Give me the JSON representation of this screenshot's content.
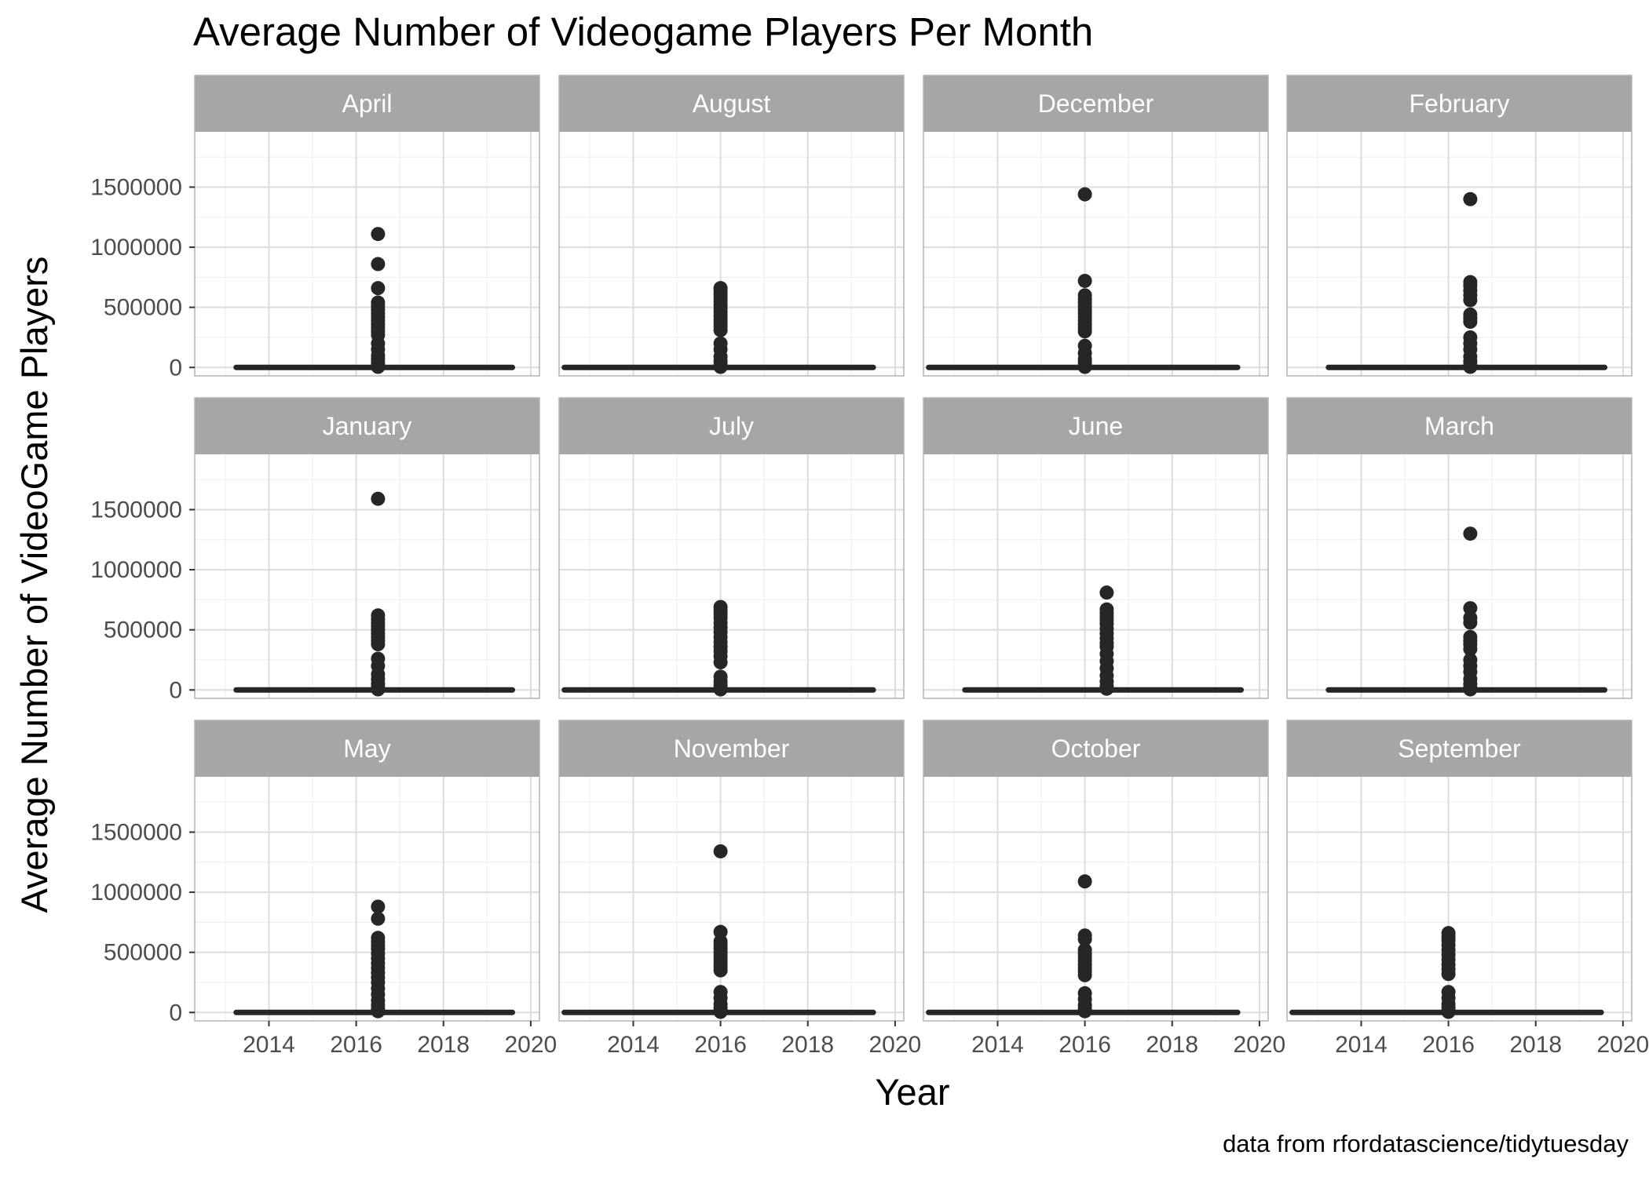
{
  "chart_data": {
    "type": "scatter",
    "title": "Average Number of Videogame Players Per Month",
    "xlabel": "Year",
    "ylabel": "Average Number of VideoGame Players",
    "caption": "data from rfordatascience/tidytuesday",
    "xlim": [
      2012.3,
      2020.2
    ],
    "ylim": [
      -70000,
      1960000
    ],
    "x_ticks": [
      2014,
      2016,
      2018,
      2020
    ],
    "y_ticks": [
      0,
      500000,
      1000000,
      1500000
    ],
    "x_tick_labels": [
      "2014",
      "2016",
      "2018",
      "2020"
    ],
    "y_tick_labels": [
      "0",
      "500000",
      "1000000",
      "1500000"
    ],
    "grid": true,
    "theme": "light",
    "colors": {
      "point": "#262626",
      "strip": "#a6a6a6",
      "strip_text": "#ffffff",
      "grid_major": "#dcdcdc",
      "grid_minor": "#efefef",
      "border": "#b3b3b3"
    },
    "facets": [
      {
        "label": "April",
        "x_range": [
          2013.25,
          2019.58
        ],
        "x": 2016.5,
        "y": [
          1110000,
          860000,
          660000,
          540000,
          510000,
          480000,
          450000,
          420000,
          390000,
          360000,
          330000,
          300000,
          270000,
          200000,
          150000,
          100000,
          70000,
          40000,
          20000,
          5000
        ]
      },
      {
        "label": "August",
        "x_range": [
          2012.42,
          2019.5
        ],
        "x": 2016,
        "y": [
          660000,
          640000,
          610000,
          580000,
          550000,
          520000,
          490000,
          460000,
          430000,
          400000,
          370000,
          340000,
          310000,
          200000,
          150000,
          90000,
          50000,
          20000,
          5000
        ]
      },
      {
        "label": "December",
        "x_range": [
          2012.42,
          2019.5
        ],
        "x": 2016,
        "y": [
          1440000,
          720000,
          600000,
          570000,
          540000,
          510000,
          480000,
          450000,
          420000,
          390000,
          360000,
          330000,
          300000,
          180000,
          120000,
          70000,
          40000,
          15000,
          5000
        ]
      },
      {
        "label": "February",
        "x_range": [
          2013.25,
          2019.58
        ],
        "x": 2016.5,
        "y": [
          1400000,
          710000,
          680000,
          640000,
          600000,
          560000,
          440000,
          410000,
          380000,
          250000,
          200000,
          150000,
          90000,
          50000,
          20000,
          5000
        ]
      },
      {
        "label": "January",
        "x_range": [
          2013.25,
          2019.58
        ],
        "x": 2016.5,
        "y": [
          1590000,
          620000,
          590000,
          560000,
          530000,
          500000,
          470000,
          440000,
          410000,
          380000,
          260000,
          200000,
          130000,
          90000,
          50000,
          20000,
          5000
        ]
      },
      {
        "label": "July",
        "x_range": [
          2012.42,
          2019.5
        ],
        "x": 2016,
        "y": [
          690000,
          660000,
          630000,
          600000,
          560000,
          520000,
          480000,
          440000,
          400000,
          360000,
          320000,
          280000,
          230000,
          110000,
          70000,
          40000,
          15000,
          5000
        ]
      },
      {
        "label": "June",
        "x_range": [
          2013.25,
          2019.58
        ],
        "x": 2016.5,
        "y": [
          810000,
          670000,
          640000,
          610000,
          580000,
          550000,
          510000,
          470000,
          430000,
          390000,
          360000,
          300000,
          240000,
          180000,
          120000,
          70000,
          30000,
          10000
        ]
      },
      {
        "label": "March",
        "x_range": [
          2013.25,
          2019.58
        ],
        "x": 2016.5,
        "y": [
          1300000,
          680000,
          600000,
          560000,
          440000,
          410000,
          380000,
          340000,
          250000,
          200000,
          150000,
          90000,
          50000,
          20000,
          5000
        ]
      },
      {
        "label": "May",
        "x_range": [
          2013.25,
          2019.58
        ],
        "x": 2016.5,
        "y": [
          880000,
          780000,
          620000,
          590000,
          560000,
          530000,
          490000,
          450000,
          410000,
          370000,
          330000,
          290000,
          250000,
          200000,
          150000,
          100000,
          60000,
          30000,
          10000
        ]
      },
      {
        "label": "November",
        "x_range": [
          2012.42,
          2019.5
        ],
        "x": 2016,
        "y": [
          1340000,
          670000,
          590000,
          560000,
          530000,
          500000,
          470000,
          440000,
          410000,
          380000,
          350000,
          170000,
          120000,
          70000,
          40000,
          15000,
          5000
        ]
      },
      {
        "label": "October",
        "x_range": [
          2012.42,
          2019.5
        ],
        "x": 2016,
        "y": [
          1090000,
          640000,
          610000,
          520000,
          490000,
          460000,
          430000,
          400000,
          370000,
          340000,
          310000,
          160000,
          110000,
          60000,
          30000,
          10000
        ]
      },
      {
        "label": "September",
        "x_range": [
          2012.42,
          2019.5
        ],
        "x": 2016,
        "y": [
          660000,
          630000,
          600000,
          560000,
          520000,
          480000,
          440000,
          400000,
          360000,
          320000,
          170000,
          120000,
          70000,
          40000,
          15000,
          5000
        ]
      }
    ]
  }
}
